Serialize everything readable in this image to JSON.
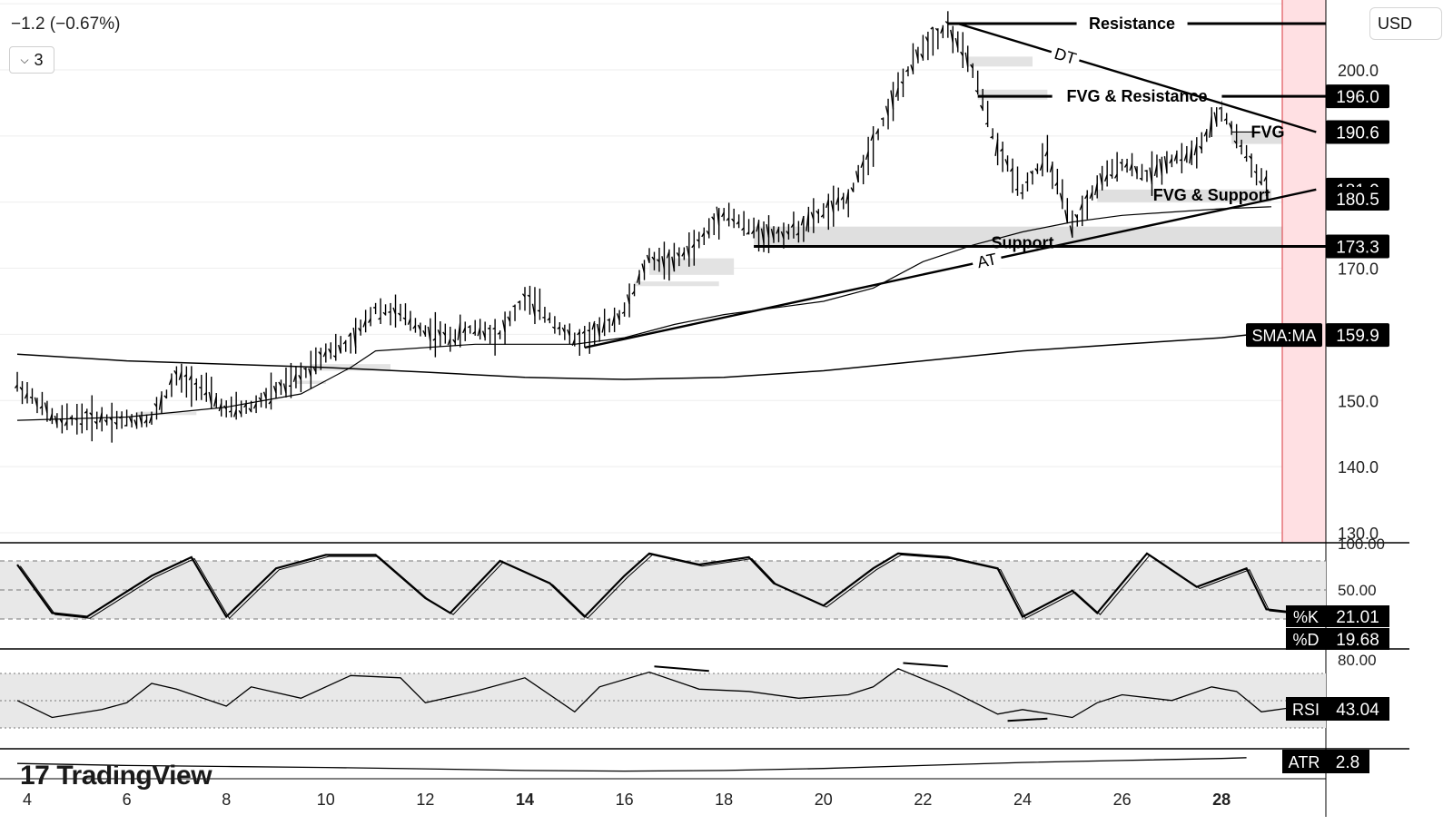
{
  "header": {
    "change_text": "−1.2 (−0.67%)",
    "legend_count": "3"
  },
  "currency": "USD",
  "watermark": "TradingView",
  "colors": {
    "line": "#000000",
    "zone": "#d9d9d9",
    "highlight": "#ffe0e3",
    "highlight_border": "#d9363e",
    "panel_bg": "#e8e8e8"
  },
  "chart_data": {
    "type": "candlestick",
    "x_ticks": [
      "4",
      "6",
      "8",
      "10",
      "12",
      "14",
      "16",
      "18",
      "20",
      "22",
      "24",
      "26",
      "28"
    ],
    "x_ticks_bold": [
      "14",
      "28"
    ],
    "price_axis": {
      "ticks": [
        "200.0",
        "170.0",
        "150.0",
        "140.0",
        "130.0"
      ],
      "ylim": [
        130,
        210
      ]
    },
    "price_path": [
      [
        3.8,
        152.5
      ],
      [
        4.3,
        149.0
      ],
      [
        4.6,
        146.8
      ],
      [
        5.0,
        147.3
      ],
      [
        5.5,
        147.2
      ],
      [
        6.0,
        147.0
      ],
      [
        6.5,
        147.3
      ],
      [
        7.0,
        153.5
      ],
      [
        7.5,
        152.0
      ],
      [
        8.0,
        148.5
      ],
      [
        8.5,
        149.0
      ],
      [
        9.0,
        151.5
      ],
      [
        9.5,
        153.5
      ],
      [
        10.0,
        157.5
      ],
      [
        10.5,
        158.5
      ],
      [
        11.0,
        164.0
      ],
      [
        11.5,
        163.0
      ],
      [
        12.0,
        160.5
      ],
      [
        12.5,
        159.5
      ],
      [
        13.0,
        161.0
      ],
      [
        13.5,
        160.0
      ],
      [
        14.0,
        165.5
      ],
      [
        14.5,
        162.5
      ],
      [
        15.0,
        159.0
      ],
      [
        15.5,
        160.5
      ],
      [
        16.0,
        163.5
      ],
      [
        16.5,
        171.5
      ],
      [
        17.0,
        171.0
      ],
      [
        17.5,
        174.0
      ],
      [
        18.0,
        178.5
      ],
      [
        18.5,
        176.0
      ],
      [
        19.0,
        175.0
      ],
      [
        19.5,
        176.0
      ],
      [
        20.0,
        178.5
      ],
      [
        20.5,
        180.5
      ],
      [
        21.0,
        189.0
      ],
      [
        21.5,
        197.0
      ],
      [
        22.0,
        203.5
      ],
      [
        22.5,
        206.5
      ],
      [
        23.0,
        200.0
      ],
      [
        23.5,
        188.0
      ],
      [
        24.0,
        182.0
      ],
      [
        24.5,
        187.0
      ],
      [
        25.0,
        176.0
      ],
      [
        25.5,
        182.5
      ],
      [
        26.0,
        186.0
      ],
      [
        26.5,
        184.0
      ],
      [
        27.0,
        186.5
      ],
      [
        27.5,
        187.5
      ],
      [
        28.0,
        194.0
      ],
      [
        28.5,
        187.0
      ],
      [
        28.8,
        183.5
      ],
      [
        29.0,
        182.5
      ]
    ],
    "ma_fast_path": [
      [
        3.8,
        147.0
      ],
      [
        6.0,
        147.5
      ],
      [
        8.0,
        149.0
      ],
      [
        9.5,
        151.0
      ],
      [
        10.5,
        155.0
      ],
      [
        11.0,
        157.5
      ],
      [
        13.0,
        158.5
      ],
      [
        15.0,
        158.5
      ],
      [
        16.0,
        159.5
      ],
      [
        17.0,
        161.5
      ],
      [
        18.0,
        163.0
      ],
      [
        19.0,
        164.0
      ],
      [
        20.0,
        165.0
      ],
      [
        21.0,
        167.0
      ],
      [
        22.0,
        171.0
      ],
      [
        23.0,
        173.5
      ],
      [
        24.0,
        175.5
      ],
      [
        25.0,
        177.0
      ],
      [
        26.0,
        178.0
      ],
      [
        27.0,
        178.5
      ],
      [
        28.0,
        179.0
      ],
      [
        29.0,
        179.3
      ]
    ],
    "sma_path": [
      [
        3.8,
        157.0
      ],
      [
        6.0,
        156.0
      ],
      [
        8.0,
        155.5
      ],
      [
        10.0,
        155.0
      ],
      [
        12.0,
        154.3
      ],
      [
        14.0,
        153.5
      ],
      [
        16.0,
        153.2
      ],
      [
        18.0,
        153.5
      ],
      [
        20.0,
        154.5
      ],
      [
        22.0,
        156.0
      ],
      [
        24.0,
        157.5
      ],
      [
        26.0,
        158.5
      ],
      [
        28.0,
        159.5
      ],
      [
        28.5,
        159.9
      ]
    ],
    "levels": [
      {
        "label": "Resistance",
        "value": 207.0,
        "x_start": 22.5
      },
      {
        "label": "FVG & Resistance",
        "value": 196.0,
        "x_start": 23.1
      },
      {
        "label": "Support",
        "value": 173.3,
        "x_start": 18.6
      }
    ],
    "zones": [
      {
        "label": "Support",
        "low": 173.3,
        "high": 176.3,
        "x_start": 18.6,
        "x_end": 29.5
      },
      {
        "label": "FVG",
        "low": 188.8,
        "high": 190.8,
        "x_start": 28.2,
        "x_end": 29.5
      },
      {
        "label": "FVG & Support",
        "low": 180.0,
        "high": 181.9,
        "x_start": 25.5,
        "x_end": 29.0
      }
    ],
    "trendlines": [
      {
        "label": "DT",
        "from": [
          22.7,
          207.0
        ],
        "to": [
          29.9,
          190.6
        ]
      },
      {
        "label": "AT",
        "from": [
          15.2,
          158.0
        ],
        "to": [
          29.9,
          181.9
        ]
      }
    ],
    "price_labels": [
      {
        "label": "",
        "value": "196.0"
      },
      {
        "label": "",
        "value": "190.6"
      },
      {
        "label": "",
        "value": "181.9"
      },
      {
        "label": "",
        "value": "180.5"
      },
      {
        "label": "",
        "value": "173.3"
      },
      {
        "label": "SMA:MA",
        "value": "159.9"
      }
    ],
    "stoch": {
      "ticks": [
        "100.00",
        "50.00"
      ],
      "k_label": "%K",
      "k_value": "21.01",
      "d_label": "%D",
      "d_value": "19.68",
      "path": [
        [
          3.8,
          85
        ],
        [
          4.5,
          20
        ],
        [
          5.2,
          15
        ],
        [
          6.5,
          70
        ],
        [
          7.3,
          95
        ],
        [
          8.0,
          15
        ],
        [
          9.0,
          80
        ],
        [
          10.0,
          98
        ],
        [
          11.0,
          98
        ],
        [
          12.0,
          40
        ],
        [
          12.5,
          20
        ],
        [
          13.5,
          90
        ],
        [
          14.5,
          60
        ],
        [
          15.2,
          15
        ],
        [
          16.0,
          70
        ],
        [
          16.5,
          100
        ],
        [
          17.5,
          85
        ],
        [
          18.5,
          95
        ],
        [
          19.0,
          60
        ],
        [
          20.0,
          30
        ],
        [
          21.0,
          80
        ],
        [
          21.5,
          100
        ],
        [
          22.5,
          95
        ],
        [
          23.5,
          80
        ],
        [
          24.0,
          15
        ],
        [
          25.0,
          50
        ],
        [
          25.5,
          20
        ],
        [
          26.5,
          100
        ],
        [
          27.5,
          55
        ],
        [
          28.5,
          80
        ],
        [
          28.9,
          25
        ],
        [
          29.3,
          22
        ]
      ]
    },
    "rsi": {
      "ticks": [
        "80.00"
      ],
      "label": "RSI",
      "value": "43.04",
      "path": [
        [
          3.8,
          50
        ],
        [
          4.5,
          35
        ],
        [
          5.5,
          42
        ],
        [
          6.0,
          48
        ],
        [
          6.5,
          65
        ],
        [
          7.0,
          60
        ],
        [
          8.0,
          45
        ],
        [
          8.5,
          62
        ],
        [
          9.5,
          52
        ],
        [
          10.5,
          72
        ],
        [
          11.5,
          70
        ],
        [
          12.0,
          48
        ],
        [
          13.0,
          58
        ],
        [
          14.0,
          70
        ],
        [
          15.0,
          40
        ],
        [
          15.5,
          62
        ],
        [
          16.5,
          75
        ],
        [
          17.5,
          60
        ],
        [
          18.5,
          58
        ],
        [
          19.5,
          52
        ],
        [
          20.5,
          55
        ],
        [
          21.0,
          62
        ],
        [
          21.5,
          78
        ],
        [
          22.5,
          60
        ],
        [
          23.5,
          38
        ],
        [
          24.0,
          42
        ],
        [
          25.0,
          35
        ],
        [
          25.5,
          48
        ],
        [
          26.0,
          55
        ],
        [
          27.0,
          50
        ],
        [
          27.8,
          62
        ],
        [
          28.3,
          58
        ],
        [
          28.8,
          40
        ],
        [
          29.3,
          43
        ]
      ]
    },
    "atr": {
      "label": "ATR",
      "value": "2.8"
    }
  }
}
